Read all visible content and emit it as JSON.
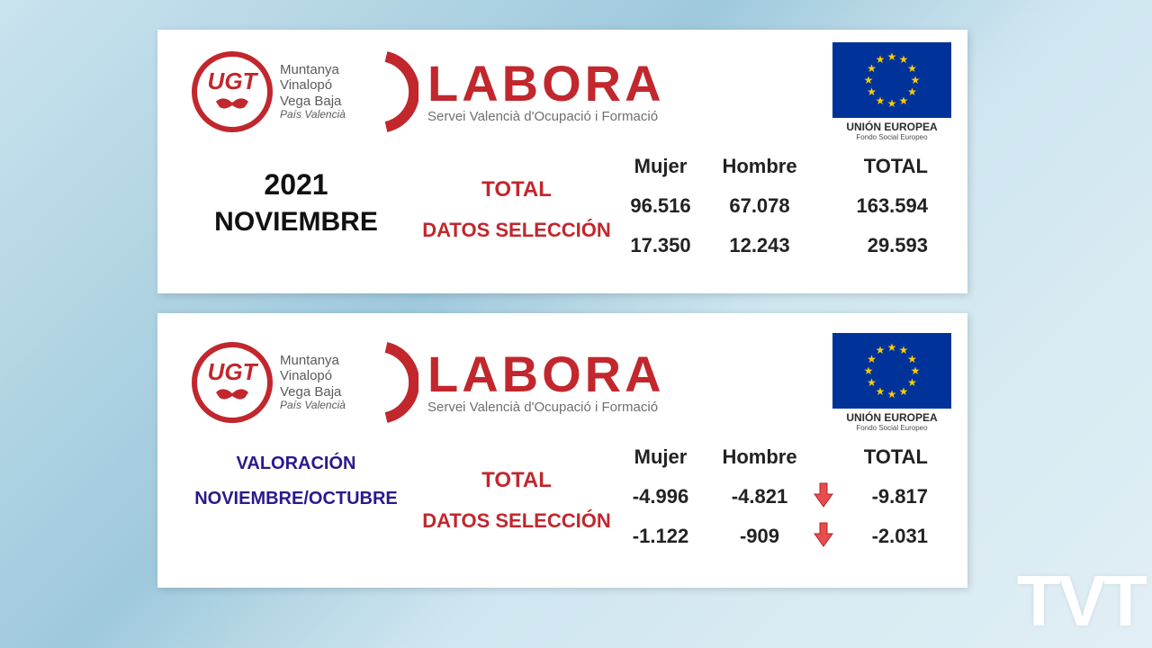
{
  "colors": {
    "accent": "#c1272d",
    "eu_blue": "#003399",
    "eu_star": "#ffcc00",
    "purple": "#2a1a8a"
  },
  "logo": {
    "ugt": "UGT",
    "region_lines": [
      "Muntanya",
      "Vinalopó",
      "Vega Baja"
    ],
    "region_sub": "País Valencià"
  },
  "labora": {
    "title": "LABORA",
    "subtitle": "Servei Valencià d'Ocupació i Formació"
  },
  "eu": {
    "caption": "UNIÓN EUROPEA",
    "subcaption": "Fondo Social Europeo"
  },
  "row_labels": {
    "total": "TOTAL",
    "seleccion": "DATOS SELECCIÓN"
  },
  "table_headers": {
    "mujer": "Mujer",
    "hombre": "Hombre",
    "total": "TOTAL"
  },
  "card1": {
    "year": "2021",
    "month": "NOVIEMBRE",
    "rows": [
      {
        "mujer": "96.516",
        "hombre": "67.078",
        "total": "163.594"
      },
      {
        "mujer": "17.350",
        "hombre": "12.243",
        "total": "29.593"
      }
    ]
  },
  "card2": {
    "valoracion": "VALORACIÓN",
    "periodo": "NOVIEMBRE/OCTUBRE",
    "rows": [
      {
        "mujer": "-4.996",
        "hombre": "-4.821",
        "total": "-9.817",
        "arrow": true
      },
      {
        "mujer": "-1.122",
        "hombre": "-909",
        "total": "-2.031",
        "arrow": true
      }
    ]
  },
  "watermark": "TVT"
}
